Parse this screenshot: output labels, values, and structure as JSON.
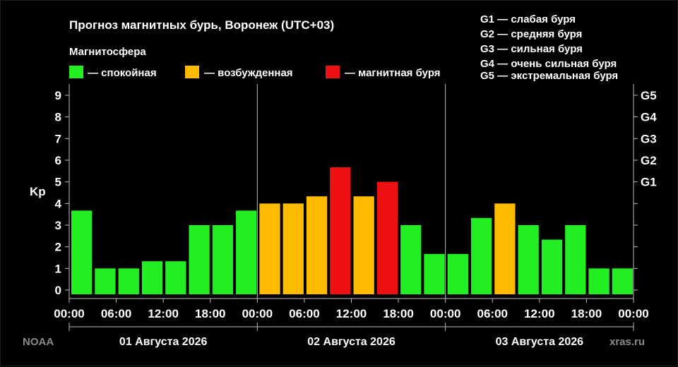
{
  "title": "Прогноз магнитных бурь, Воронеж (UTC+03)",
  "legend": {
    "heading": "Магнитосфера",
    "items": [
      {
        "label": "— спокойная",
        "color": "#22ee22"
      },
      {
        "label": "— возбужденная",
        "color": "#ffbb00"
      },
      {
        "label": "— магнитная буря",
        "color": "#ee1111"
      }
    ]
  },
  "g_scale": [
    "G1 — слабая буря",
    "G2 — средняя буря",
    "G3 — сильная буря",
    "G4 — очень сильная буря",
    "G5 — экстремальная буря"
  ],
  "source_left": "NOAA",
  "source_right": "xras.ru",
  "chart_data": {
    "type": "bar",
    "ylabel": "Kp",
    "ylim": [
      0,
      9
    ],
    "yticks": [
      "0",
      "1",
      "2",
      "3",
      "4",
      "5",
      "6",
      "7",
      "8",
      "9"
    ],
    "y2ticks": [
      {
        "value": 5,
        "label": "G1"
      },
      {
        "value": 6,
        "label": "G2"
      },
      {
        "value": 7,
        "label": "G3"
      },
      {
        "value": 8,
        "label": "G4"
      },
      {
        "value": 9,
        "label": "G5"
      }
    ],
    "xticks": [
      "00:00",
      "06:00",
      "12:00",
      "18:00",
      "00:00",
      "06:00",
      "12:00",
      "18:00",
      "00:00",
      "06:00",
      "12:00",
      "18:00",
      "00:00"
    ],
    "days": [
      "01 Августа 2026",
      "02 Августа 2026",
      "03 Августа 2026"
    ],
    "bar_interval_hours": 3,
    "values": [
      3.67,
      1.0,
      1.0,
      1.33,
      1.33,
      3.0,
      3.0,
      3.67,
      4.0,
      4.0,
      4.33,
      5.67,
      4.33,
      5.0,
      3.0,
      1.67,
      1.67,
      3.33,
      4.0,
      3.0,
      2.33,
      3.0,
      1.0,
      1.0
    ],
    "levels": [
      "quiet",
      "quiet",
      "quiet",
      "quiet",
      "quiet",
      "quiet",
      "quiet",
      "quiet",
      "unsettled",
      "unsettled",
      "unsettled",
      "storm",
      "unsettled",
      "storm",
      "quiet",
      "quiet",
      "quiet",
      "quiet",
      "unsettled",
      "quiet",
      "quiet",
      "quiet",
      "quiet",
      "quiet"
    ],
    "level_colors": {
      "quiet": "#22ee22",
      "unsettled": "#ffbb00",
      "storm": "#ee1111"
    },
    "grid": false
  }
}
